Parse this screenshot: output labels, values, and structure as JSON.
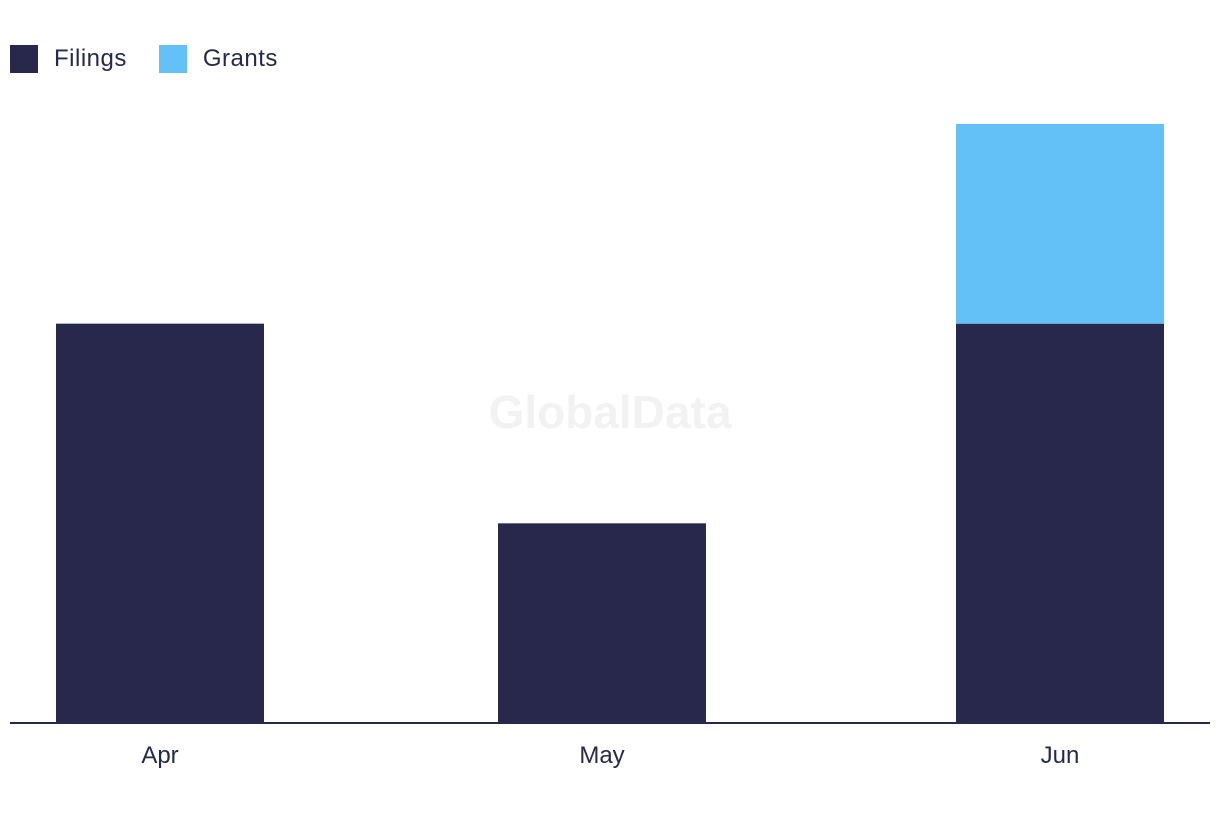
{
  "watermark": "GlobalData",
  "chart_data": {
    "type": "bar",
    "stacked": true,
    "categories": [
      "Apr",
      "May",
      "Jun"
    ],
    "series": [
      {
        "name": "Filings",
        "values": [
          2,
          1,
          2
        ],
        "color": "#27284b"
      },
      {
        "name": "Grants",
        "values": [
          0,
          0,
          1
        ],
        "color": "#63c1f8"
      }
    ],
    "ylim": [
      0,
      3
    ],
    "legend_position": "top-left",
    "grid": false,
    "y_axis_visible": false
  }
}
